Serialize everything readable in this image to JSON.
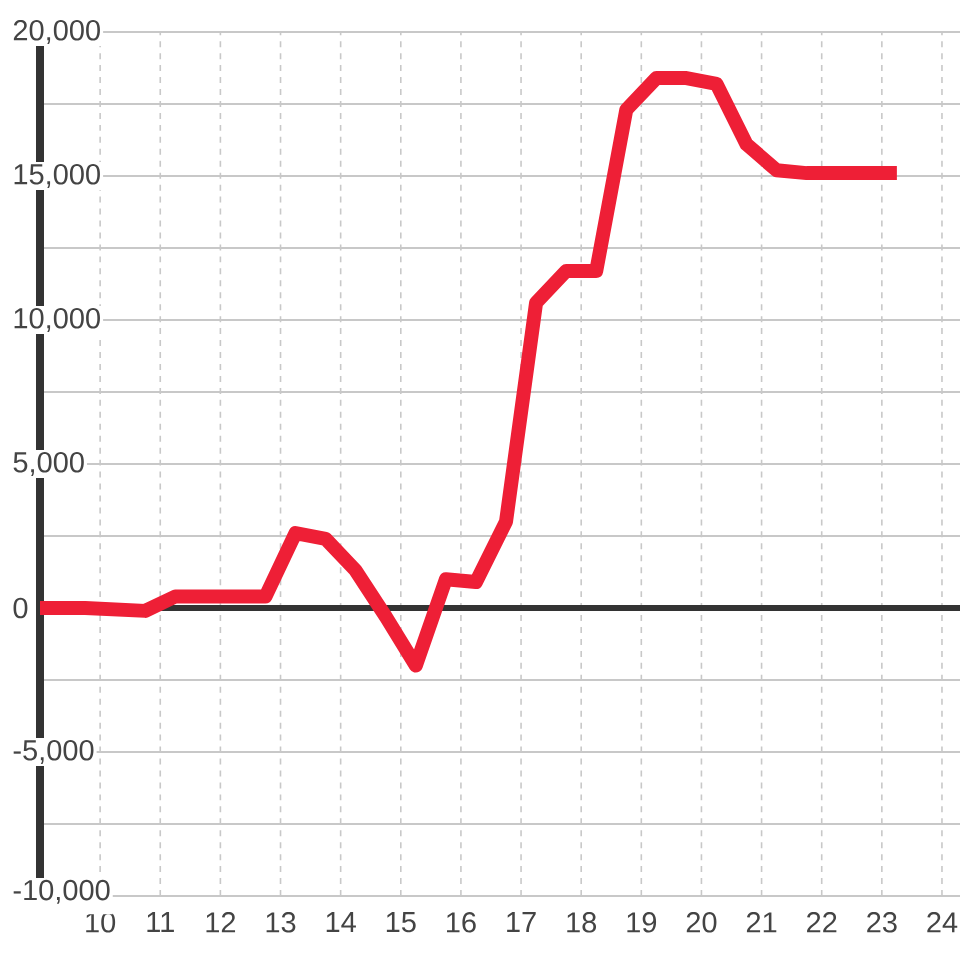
{
  "chart_data": {
    "type": "line",
    "x": [
      9,
      9.25,
      9.75,
      10.25,
      10.75,
      11.25,
      11.75,
      12.25,
      12.75,
      13.25,
      13.75,
      14.25,
      14.75,
      15.25,
      15.75,
      16.25,
      16.75,
      17.25,
      17.75,
      18.25,
      18.75,
      19.25,
      19.75,
      20.25,
      20.75,
      21.25,
      21.75,
      22.25,
      22.75,
      23.25
    ],
    "values": [
      0,
      0,
      0,
      -50,
      -100,
      400,
      400,
      400,
      400,
      2600,
      2400,
      1300,
      -300,
      -2000,
      1000,
      900,
      3000,
      10600,
      11700,
      11700,
      17300,
      18400,
      18400,
      18200,
      16100,
      15200,
      15100,
      15100,
      15100,
      15100
    ],
    "color": "#ee1f36",
    "xlim": [
      9,
      24.3
    ],
    "xticks": [
      10,
      11,
      12,
      13,
      14,
      15,
      16,
      17,
      18,
      19,
      20,
      21,
      22,
      23,
      24
    ],
    "ylim": [
      -10000,
      20000
    ],
    "yticks": [
      {
        "value": -10000,
        "label": "-10,000"
      },
      {
        "value": -7500,
        "label": null
      },
      {
        "value": -5000,
        "label": "-5,000"
      },
      {
        "value": -2500,
        "label": null
      },
      0,
      {
        "value": 2500,
        "label": null
      },
      {
        "value": 5000,
        "label": "5,000"
      },
      {
        "value": 7500,
        "label": null
      },
      {
        "value": 10000,
        "label": "10,000"
      },
      {
        "value": 12500,
        "label": null
      },
      {
        "value": 15000,
        "label": "15,000"
      },
      {
        "value": 17500,
        "label": null
      },
      {
        "value": 20000,
        "label": "20,000"
      }
    ],
    "grid": true,
    "ref_lines": [
      {
        "axis": "y",
        "value": 0,
        "color": "#333333"
      }
    ]
  }
}
